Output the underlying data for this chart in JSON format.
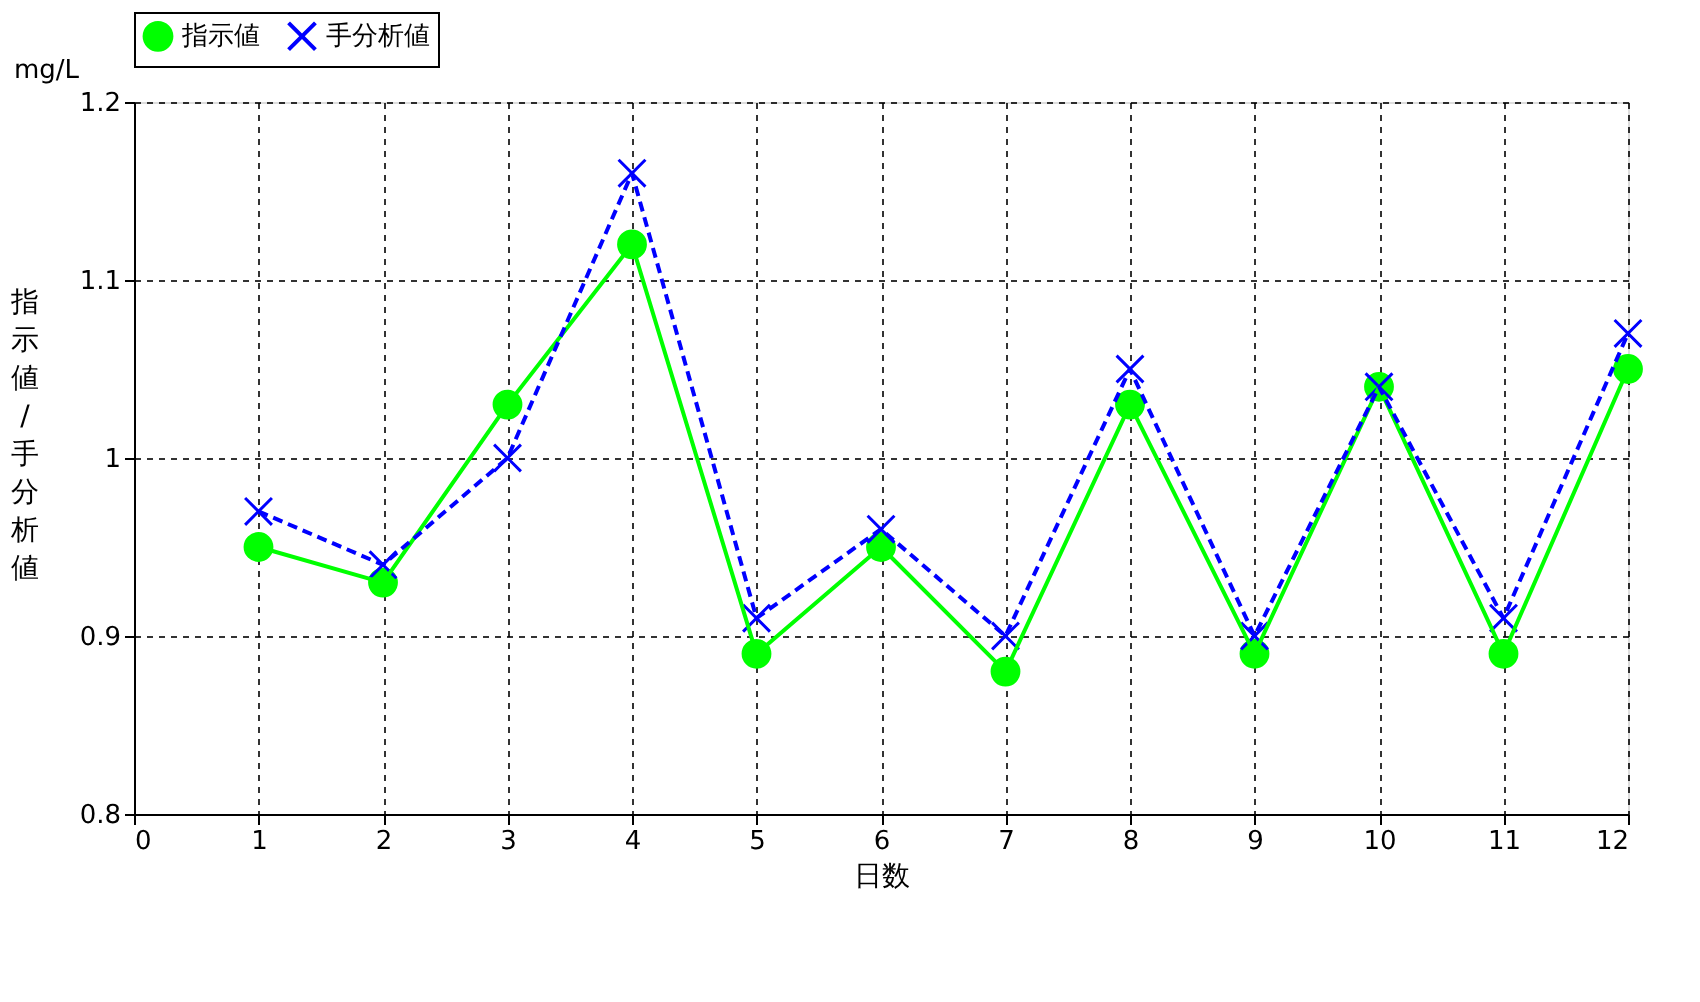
{
  "chart_data": {
    "type": "line",
    "xlabel": "日数",
    "ylabel": "指示値/手分析値",
    "annotations": [
      "mg/L"
    ],
    "x": [
      1,
      2,
      3,
      4,
      5,
      6,
      7,
      8,
      9,
      10,
      11,
      12
    ],
    "series": [
      {
        "name": "指示値",
        "color": "#00ff00",
        "marker": "circle",
        "line_style": "solid",
        "values": [
          0.95,
          0.93,
          1.03,
          1.12,
          0.89,
          0.95,
          0.88,
          1.03,
          0.89,
          1.04,
          0.89,
          1.05
        ]
      },
      {
        "name": "手分析値",
        "color": "#0000ff",
        "marker": "cross",
        "line_style": "dashed",
        "values": [
          0.97,
          0.94,
          1.0,
          1.16,
          0.91,
          0.96,
          0.9,
          1.05,
          0.9,
          1.04,
          0.91,
          1.07
        ]
      }
    ],
    "xlim": [
      0,
      12
    ],
    "xticks": [
      0,
      1,
      2,
      3,
      4,
      5,
      6,
      7,
      8,
      9,
      10,
      11,
      12
    ],
    "ylim": [
      0.8,
      1.2
    ],
    "yticks": [
      0.8,
      0.9,
      1,
      1.1,
      1.2
    ],
    "grid": true,
    "legend": "top"
  }
}
